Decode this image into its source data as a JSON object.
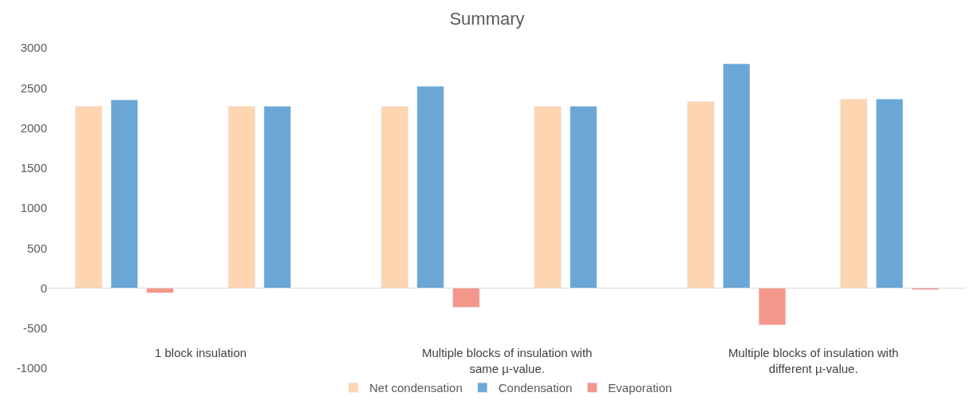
{
  "chart_data": {
    "type": "bar",
    "title": "Summary",
    "categories": [
      null,
      null,
      null,
      null,
      null,
      null
    ],
    "series": [
      {
        "name": "Net condensation",
        "color": "#fdd5b1",
        "values": [
          2270,
          2270,
          2270,
          2270,
          2330,
          2360
        ]
      },
      {
        "name": "Condensation",
        "color": "#6aa7d6",
        "values": [
          2350,
          2270,
          2520,
          2270,
          2800,
          2360
        ]
      },
      {
        "name": "Evaporation",
        "color": "#f4978a",
        "values": [
          -60,
          null,
          -240,
          null,
          -460,
          -20
        ]
      }
    ],
    "annotations": [
      "1 block insulation",
      "Multiple blocks of insulation with same µ-value.",
      "Multiple blocks of insulation with different µ-value."
    ],
    "ylim": [
      -1000,
      3000
    ],
    "yticks": [
      -1000,
      -500,
      0,
      500,
      1000,
      1500,
      2000,
      2500,
      3000
    ],
    "ref_lines": [
      {
        "axis": "y",
        "value": 0,
        "color": "#d9d9d9"
      }
    ],
    "legend": "bottom"
  }
}
